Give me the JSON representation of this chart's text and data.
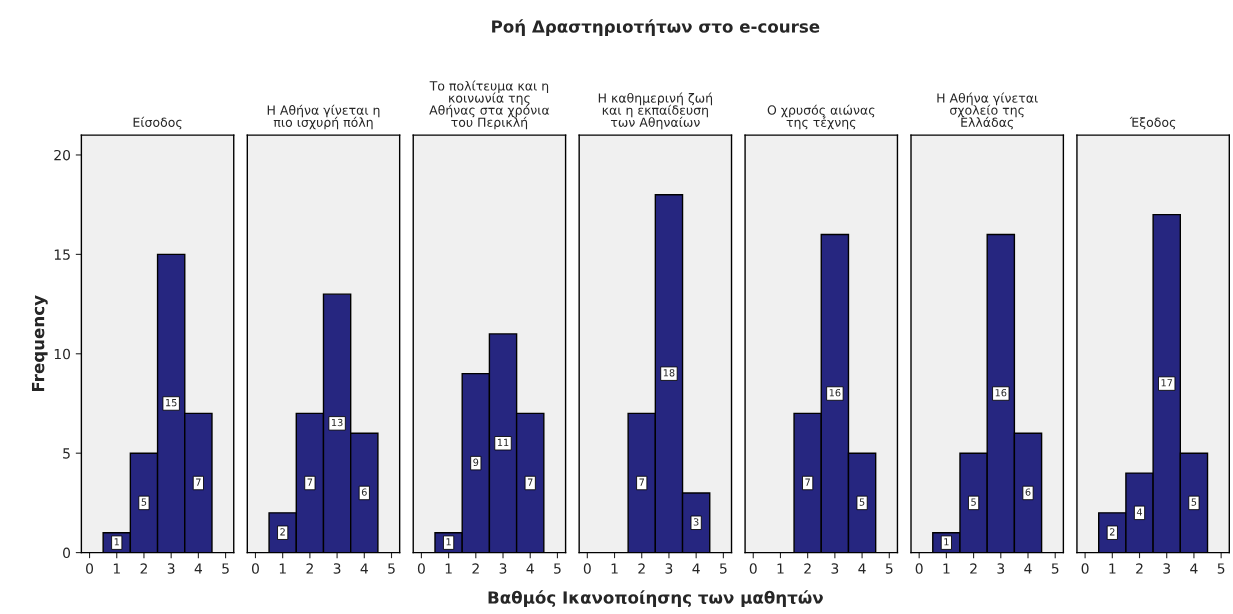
{
  "chart_data": [
    {
      "type": "histogram",
      "ylabel": "Frequency",
      "subtitle": "Είσοδος",
      "bins": [
        0.5,
        1.5,
        2.5,
        3.5,
        4.5
      ],
      "values": [
        1,
        5,
        15,
        7
      ],
      "color": "#262680",
      "xlim": [
        -0.3,
        5.3
      ],
      "ylim": [
        0,
        21
      ],
      "xticks": [
        0,
        1,
        2,
        3,
        4,
        5
      ],
      "yticks": [
        0,
        5,
        10,
        15,
        20
      ],
      "data_labels": true
    },
    {
      "type": "histogram",
      "subtitle": "Η Αθήνα γίνεται η\nπιο ισχυρή πόλη",
      "bins": [
        0.5,
        1.5,
        2.5,
        3.5,
        4.5
      ],
      "values": [
        2,
        7,
        13,
        6
      ],
      "color": "#262680",
      "xlim": [
        -0.3,
        5.3
      ],
      "ylim": [
        0,
        21
      ],
      "xticks": [
        0,
        1,
        2,
        3,
        4,
        5
      ],
      "yticks": [
        0,
        5,
        10,
        15,
        20
      ],
      "tick_labels": "x",
      "data_labels": true
    },
    {
      "type": "histogram",
      "subtitle": "Το πολίτευμα και η\nκοινωνία της\nΑθήνας στα χρόνια\nτου Περικλή",
      "bins": [
        0.5,
        1.5,
        2.5,
        3.5,
        4.5
      ],
      "values": [
        1,
        9,
        11,
        7
      ],
      "color": "#262680",
      "xlim": [
        -0.3,
        5.3
      ],
      "ylim": [
        0,
        21
      ],
      "xticks": [
        0,
        1,
        2,
        3,
        4,
        5
      ],
      "yticks": [
        0,
        5,
        10,
        15,
        20
      ],
      "tick_labels": "x",
      "data_labels": true
    },
    {
      "type": "histogram",
      "title": "Ροή Δραστηριοτήτων στο e-course",
      "xlabel": "Βαθμός Ικανοποίησης των μαθητών",
      "subtitle": "Η καθημερινή ζωή\nκαι η εκπαίδευση\nτων Αθηναίων",
      "bins": [
        0.5,
        1.5,
        2.5,
        3.5,
        4.5
      ],
      "values": [
        null,
        7,
        18,
        3
      ],
      "color": "#262680",
      "xlim": [
        -0.3,
        5.3
      ],
      "ylim": [
        0,
        21
      ],
      "xticks": [
        0,
        1,
        2,
        3,
        4,
        5
      ],
      "yticks": [
        0,
        5,
        10,
        15,
        20
      ],
      "tick_labels": "x",
      "data_labels": true
    },
    {
      "type": "histogram",
      "subtitle": "Ο χρυσός αιώνας\nτης τέχνης",
      "bins": [
        0.5,
        1.5,
        2.5,
        3.5,
        4.5
      ],
      "values": [
        null,
        7,
        16,
        5
      ],
      "color": "#262680",
      "xlim": [
        -0.3,
        5.3
      ],
      "ylim": [
        0,
        21
      ],
      "xticks": [
        0,
        1,
        2,
        3,
        4,
        5
      ],
      "yticks": [
        0,
        5,
        10,
        15,
        20
      ],
      "tick_labels": "x",
      "data_labels": true
    },
    {
      "type": "histogram",
      "subtitle": "Η Αθήνα γίνεται\nσχολείο της\nΕλλάδας",
      "bins": [
        0.5,
        1.5,
        2.5,
        3.5,
        4.5
      ],
      "values": [
        1,
        5,
        16,
        6
      ],
      "color": "#262680",
      "xlim": [
        -0.3,
        5.3
      ],
      "ylim": [
        0,
        21
      ],
      "xticks": [
        0,
        1,
        2,
        3,
        4,
        5
      ],
      "yticks": [
        0,
        5,
        10,
        15,
        20
      ],
      "tick_labels": "x",
      "data_labels": true
    },
    {
      "type": "histogram",
      "subtitle": "Έξοδος",
      "bins": [
        0.5,
        1.5,
        2.5,
        3.5,
        4.5
      ],
      "values": [
        2,
        4,
        17,
        5
      ],
      "color": "#262680",
      "xlim": [
        -0.3,
        5.3
      ],
      "ylim": [
        0,
        21
      ],
      "xticks": [
        0,
        1,
        2,
        3,
        4,
        5
      ],
      "yticks": [
        0,
        5,
        10,
        15,
        20
      ],
      "tick_labels": "x",
      "data_labels": true
    }
  ]
}
